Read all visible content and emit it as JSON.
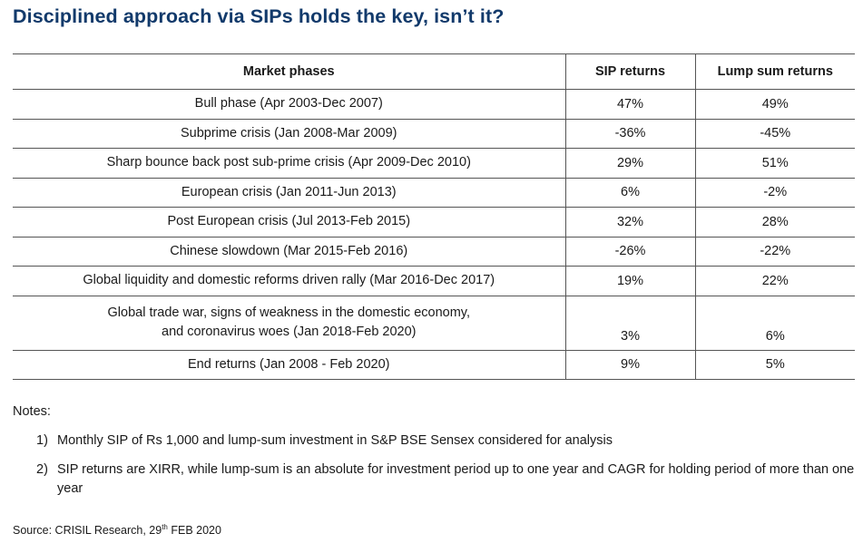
{
  "title": "Disciplined approach via SIPs holds the key, isn’t it?",
  "table": {
    "headers": [
      "Market phases",
      "SIP returns",
      "Lump sum returns"
    ],
    "rows": [
      {
        "phase": "Bull phase (Apr 2003-Dec 2007)",
        "sip": "47%",
        "lump": "49%"
      },
      {
        "phase": "Subprime crisis (Jan 2008-Mar 2009)",
        "sip": "-36%",
        "lump": "-45%"
      },
      {
        "phase": "Sharp bounce back post sub-prime crisis (Apr 2009-Dec 2010)",
        "sip": "29%",
        "lump": "51%"
      },
      {
        "phase": "European crisis (Jan 2011-Jun 2013)",
        "sip": "6%",
        "lump": "-2%"
      },
      {
        "phase": "Post European crisis (Jul 2013-Feb 2015)",
        "sip": "32%",
        "lump": "28%"
      },
      {
        "phase": "Chinese slowdown (Mar 2015-Feb 2016)",
        "sip": "-26%",
        "lump": "-22%"
      },
      {
        "phase": "Global liquidity and domestic reforms driven rally (Mar 2016-Dec 2017)",
        "sip": "19%",
        "lump": "22%"
      },
      {
        "phase_line1": "Global trade war, signs of weakness in the domestic economy,",
        "phase_line2": "and coronavirus woes (Jan 2018-Feb 2020)",
        "sip": "3%",
        "lump": "6%"
      },
      {
        "phase": "End returns (Jan 2008 - Feb 2020)",
        "sip": "9%",
        "lump": "5%"
      }
    ]
  },
  "notes": {
    "label": "Notes:",
    "items": [
      {
        "num": "1)",
        "text": "Monthly SIP of Rs 1,000 and lump-sum investment in S&P BSE Sensex considered for analysis"
      },
      {
        "num": "2)",
        "text": "SIP returns are XIRR, while lump-sum is an absolute for investment period up to one year and CAGR for holding period of more than one year"
      }
    ]
  },
  "source": {
    "prefix": "Source: CRISIL Research, 29",
    "superscript": "th",
    "suffix": " FEB 2020"
  },
  "colors": {
    "title": "#123a6b",
    "text": "#1a1a1a",
    "rule": "#555555"
  }
}
